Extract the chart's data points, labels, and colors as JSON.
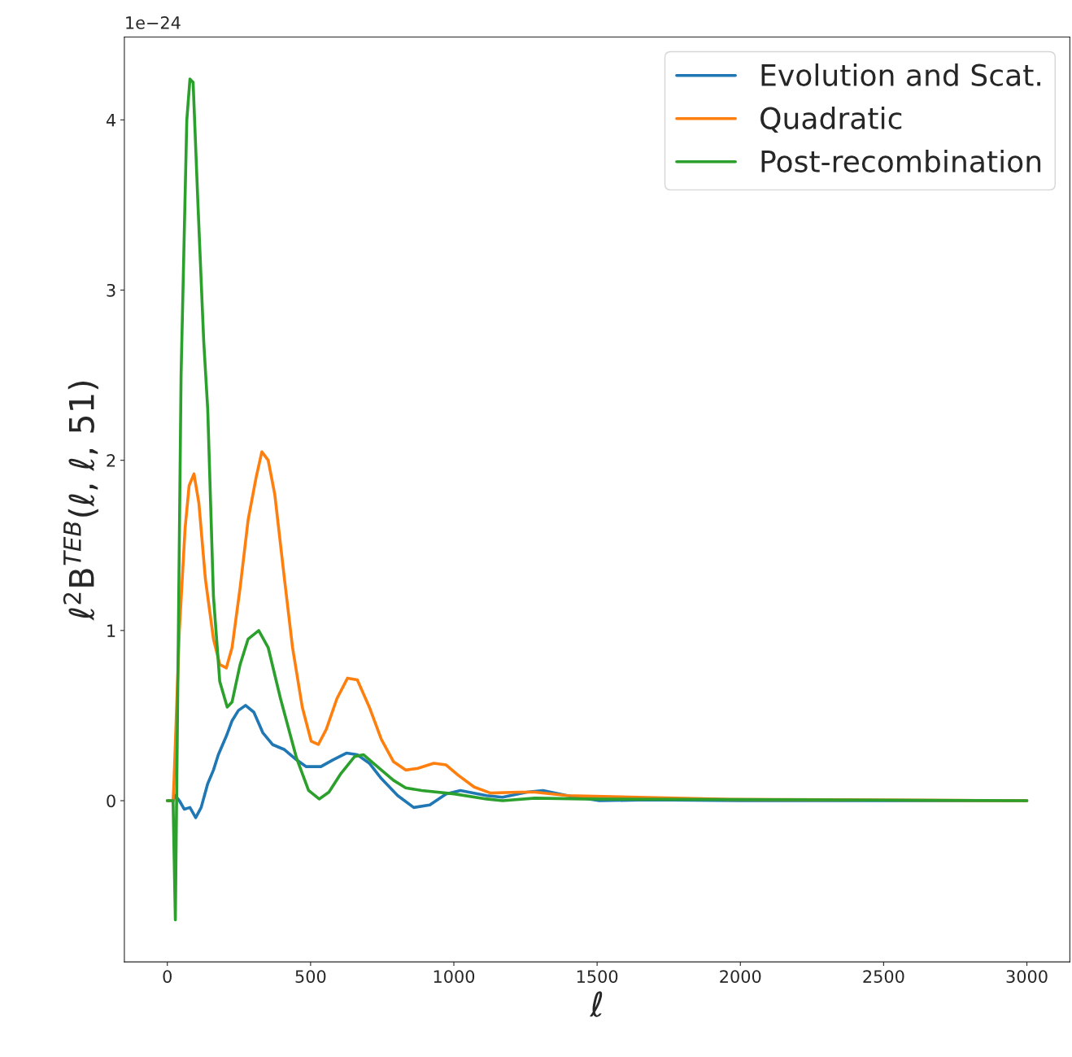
{
  "chart_data": {
    "type": "line",
    "xlabel": "ℓ",
    "ylabel": "ℓ$^{2}$B$^{TEB}$(ℓ, ℓ, 51)",
    "annotations": [
      "1e−24"
    ],
    "xlim": [
      -150,
      3150
    ],
    "xticks": [
      0,
      500,
      1000,
      1500,
      2000,
      2500,
      3000
    ],
    "ylim": [
      -0.947,
      4.487
    ],
    "yticks": [
      0,
      1,
      2,
      3,
      4
    ],
    "legend": "top right",
    "grid": false,
    "series": [
      {
        "name": "Evolution and Scat.",
        "color": "#1f77b4",
        "x": [
          0,
          20,
          28,
          42,
          59,
          79,
          99,
          118,
          141,
          161,
          178,
          206,
          226,
          248,
          273,
          302,
          333,
          367,
          409,
          451,
          485,
          536,
          578,
          626,
          663,
          705,
          747,
          804,
          860,
          916,
          973,
          1023,
          1114,
          1170,
          1255,
          1311,
          1396,
          1508,
          1678,
          2000,
          3000
        ],
        "values": [
          0,
          0,
          0.03,
          0.0,
          -0.05,
          -0.04,
          -0.1,
          -0.04,
          0.1,
          0.18,
          0.27,
          0.38,
          0.47,
          0.53,
          0.56,
          0.52,
          0.4,
          0.33,
          0.3,
          0.24,
          0.2,
          0.2,
          0.24,
          0.28,
          0.27,
          0.22,
          0.13,
          0.03,
          -0.04,
          -0.025,
          0.04,
          0.06,
          0.03,
          0.02,
          0.05,
          0.06,
          0.03,
          0.0,
          0.005,
          0.0,
          0
        ]
      },
      {
        "name": "Quadratic",
        "color": "#ff7f0e",
        "x": [
          0,
          20,
          23,
          42,
          62,
          76,
          93,
          110,
          133,
          161,
          183,
          206,
          226,
          254,
          282,
          310,
          330,
          352,
          375,
          409,
          437,
          471,
          502,
          527,
          555,
          592,
          629,
          663,
          705,
          747,
          789,
          832,
          874,
          930,
          973,
          1015,
          1071,
          1128,
          1226,
          1283,
          1396,
          1508,
          1960,
          3000
        ],
        "values": [
          0,
          0,
          0.1,
          1.0,
          1.6,
          1.85,
          1.92,
          1.75,
          1.3,
          0.95,
          0.8,
          0.78,
          0.9,
          1.25,
          1.65,
          1.9,
          2.05,
          2.0,
          1.8,
          1.3,
          0.9,
          0.55,
          0.35,
          0.33,
          0.42,
          0.6,
          0.72,
          0.71,
          0.55,
          0.36,
          0.23,
          0.18,
          0.19,
          0.22,
          0.21,
          0.15,
          0.08,
          0.045,
          0.05,
          0.05,
          0.03,
          null,
          0.008,
          0
        ]
      },
      {
        "name": "Post-recombination",
        "color": "#2ca02c",
        "x": [
          0,
          20,
          28,
          48,
          68,
          79,
          90,
          107,
          127,
          141,
          161,
          183,
          209,
          226,
          254,
          282,
          319,
          352,
          395,
          451,
          493,
          530,
          564,
          606,
          654,
          685,
          733,
          789,
          832,
          888,
          1001,
          1114,
          1170,
          1283,
          1452,
          3000
        ],
        "values": [
          0,
          0,
          -0.7,
          2.5,
          4.0,
          4.24,
          4.22,
          3.5,
          2.7,
          2.3,
          1.2,
          0.7,
          0.55,
          0.58,
          0.8,
          0.95,
          1.0,
          0.9,
          0.6,
          0.25,
          0.06,
          0.01,
          0.05,
          0.16,
          0.26,
          0.27,
          0.2,
          0.12,
          0.075,
          0.06,
          0.04,
          0.01,
          0.0,
          0.015,
          0.01,
          0
        ]
      }
    ]
  }
}
